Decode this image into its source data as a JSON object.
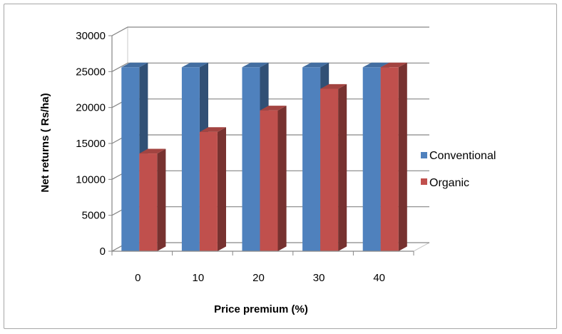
{
  "chart_data": {
    "type": "bar",
    "style": "3d-clustered-column",
    "title": "",
    "xlabel": "Price premium (%)",
    "ylabel": "Net returns ( Rs/ha)",
    "categories": [
      "0",
      "10",
      "20",
      "30",
      "40"
    ],
    "series": [
      {
        "name": "Conventional",
        "color": "#4f81bd",
        "values": [
          25600,
          25600,
          25600,
          25600,
          25600
        ]
      },
      {
        "name": "Organic",
        "color": "#c0504d",
        "values": [
          13600,
          16600,
          19600,
          22600,
          25600
        ]
      }
    ],
    "ylim": [
      0,
      30000
    ],
    "yticks": [
      "0",
      "5000",
      "10000",
      "15000",
      "20000",
      "25000",
      "30000"
    ],
    "grid": true,
    "legend": "right"
  }
}
